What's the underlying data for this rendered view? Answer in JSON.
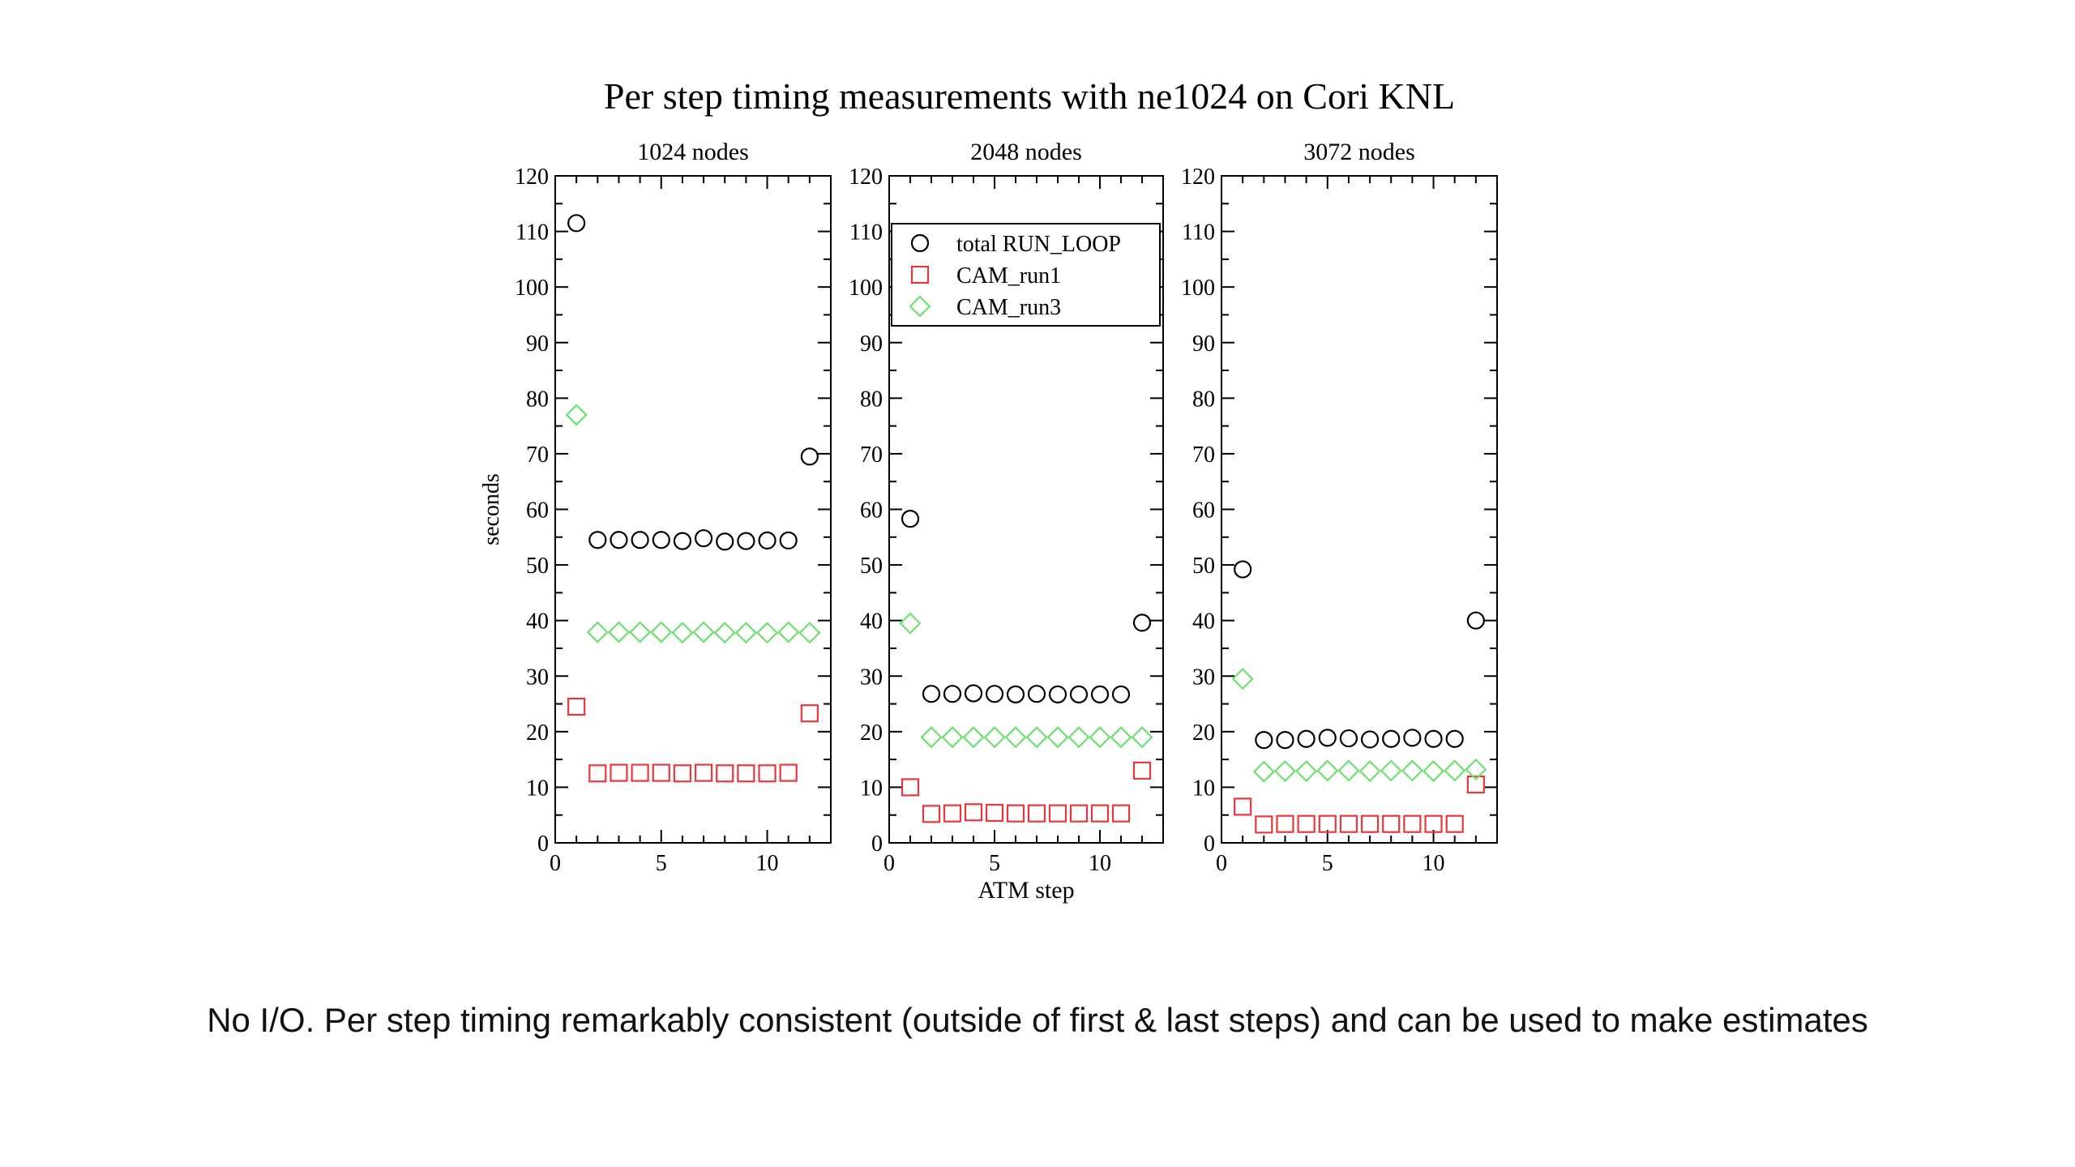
{
  "figure_title": "Per step timing measurements with ne1024 on Cori KNL",
  "caption": "No I/O. Per step timing remarkably consistent (outside of first & last steps) and can be used to make estimates",
  "colors": {
    "total": "#000000",
    "cam_run1": "#e8383d",
    "cam_run3": "#6fe06f",
    "axis": "#000000"
  },
  "chart_data": [
    {
      "type": "scatter",
      "title": "1024 nodes",
      "xlabel": "",
      "ylabel": "seconds",
      "xlim": [
        0,
        13
      ],
      "ylim": [
        0,
        120
      ],
      "x_ticks": [
        0,
        5,
        10
      ],
      "y_ticks": [
        0,
        10,
        20,
        30,
        40,
        50,
        60,
        70,
        80,
        90,
        100,
        110,
        120
      ],
      "legend": false,
      "series": [
        {
          "name": "total RUN_LOOP",
          "marker": "circle",
          "x": [
            1,
            2,
            3,
            4,
            5,
            6,
            7,
            8,
            9,
            10,
            11,
            12
          ],
          "y": [
            111.5,
            54.5,
            54.5,
            54.5,
            54.5,
            54.3,
            54.8,
            54.2,
            54.3,
            54.4,
            54.4,
            69.5
          ]
        },
        {
          "name": "CAM_run1",
          "marker": "square",
          "x": [
            1,
            2,
            3,
            4,
            5,
            6,
            7,
            8,
            9,
            10,
            11,
            12
          ],
          "y": [
            24.5,
            12.5,
            12.6,
            12.6,
            12.6,
            12.5,
            12.6,
            12.5,
            12.5,
            12.5,
            12.6,
            23.3
          ]
        },
        {
          "name": "CAM_run3",
          "marker": "diamond",
          "x": [
            1,
            2,
            3,
            4,
            5,
            6,
            7,
            8,
            9,
            10,
            11,
            12
          ],
          "y": [
            77,
            37.9,
            37.9,
            37.9,
            37.9,
            37.8,
            37.9,
            37.8,
            37.8,
            37.8,
            37.9,
            37.8
          ]
        }
      ]
    },
    {
      "type": "scatter",
      "title": "2048 nodes",
      "xlabel": "ATM step",
      "ylabel": "",
      "xlim": [
        0,
        13
      ],
      "ylim": [
        0,
        120
      ],
      "x_ticks": [
        0,
        5,
        10
      ],
      "y_ticks": [
        0,
        10,
        20,
        30,
        40,
        50,
        60,
        70,
        80,
        90,
        100,
        110,
        120
      ],
      "legend": true,
      "legend_position": "top-right",
      "series": [
        {
          "name": "total RUN_LOOP",
          "marker": "circle",
          "x": [
            1,
            2,
            3,
            4,
            5,
            6,
            7,
            8,
            9,
            10,
            11,
            12
          ],
          "y": [
            58.3,
            26.8,
            26.8,
            26.9,
            26.8,
            26.7,
            26.8,
            26.7,
            26.7,
            26.7,
            26.7,
            39.6
          ]
        },
        {
          "name": "CAM_run1",
          "marker": "square",
          "x": [
            1,
            2,
            3,
            4,
            5,
            6,
            7,
            8,
            9,
            10,
            11,
            12
          ],
          "y": [
            10,
            5.2,
            5.3,
            5.5,
            5.4,
            5.3,
            5.3,
            5.3,
            5.3,
            5.3,
            5.3,
            13
          ]
        },
        {
          "name": "CAM_run3",
          "marker": "diamond",
          "x": [
            1,
            2,
            3,
            4,
            5,
            6,
            7,
            8,
            9,
            10,
            11,
            12
          ],
          "y": [
            39.5,
            19,
            19,
            19,
            19,
            19,
            19,
            19,
            19,
            19,
            19,
            19
          ]
        }
      ]
    },
    {
      "type": "scatter",
      "title": "3072 nodes",
      "xlabel": "",
      "ylabel": "",
      "xlim": [
        0,
        13
      ],
      "ylim": [
        0,
        120
      ],
      "x_ticks": [
        0,
        5,
        10
      ],
      "y_ticks": [
        0,
        10,
        20,
        30,
        40,
        50,
        60,
        70,
        80,
        90,
        100,
        110,
        120
      ],
      "legend": false,
      "series": [
        {
          "name": "total RUN_LOOP",
          "marker": "circle",
          "x": [
            1,
            2,
            3,
            4,
            5,
            6,
            7,
            8,
            9,
            10,
            11,
            12
          ],
          "y": [
            49.2,
            18.5,
            18.5,
            18.7,
            18.9,
            18.8,
            18.6,
            18.7,
            18.9,
            18.7,
            18.7,
            40
          ]
        },
        {
          "name": "CAM_run1",
          "marker": "square",
          "x": [
            1,
            2,
            3,
            4,
            5,
            6,
            7,
            8,
            9,
            10,
            11,
            12
          ],
          "y": [
            6.5,
            3.3,
            3.4,
            3.4,
            3.4,
            3.4,
            3.4,
            3.4,
            3.4,
            3.4,
            3.4,
            10.5
          ]
        },
        {
          "name": "CAM_run3",
          "marker": "diamond",
          "x": [
            1,
            2,
            3,
            4,
            5,
            6,
            7,
            8,
            9,
            10,
            11,
            12
          ],
          "y": [
            29.5,
            12.8,
            12.9,
            12.9,
            13,
            13,
            12.9,
            13,
            13,
            12.9,
            13,
            13.2
          ]
        }
      ]
    }
  ]
}
